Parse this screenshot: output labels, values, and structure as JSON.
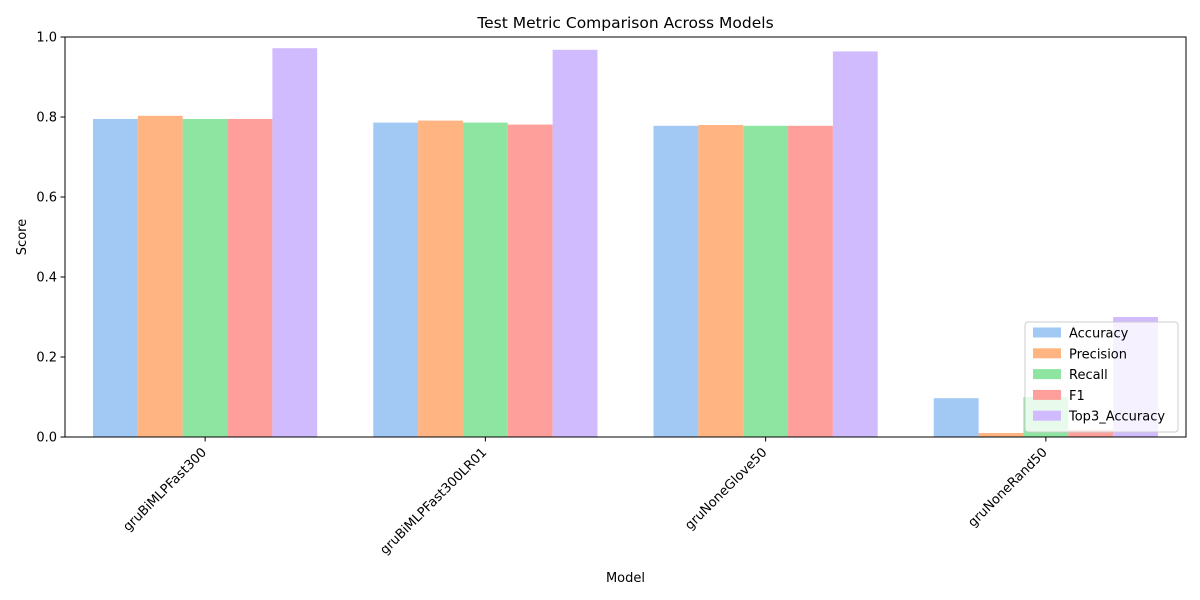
{
  "chart_data": {
    "type": "bar",
    "title": "Test Metric Comparison Across Models",
    "xlabel": "Model",
    "ylabel": "Score",
    "ylim": [
      0,
      1.0
    ],
    "yticks": [
      "0.0",
      "0.2",
      "0.4",
      "0.6",
      "0.8",
      "1.0"
    ],
    "categories": [
      "gruBiMLPFast300",
      "gruBiMLPFast300LR01",
      "gruNoneGlove50",
      "gruNoneRand50"
    ],
    "series": [
      {
        "name": "Accuracy",
        "color": "#a1c9f4",
        "values": [
          0.795,
          0.786,
          0.778,
          0.097
        ]
      },
      {
        "name": "Precision",
        "color": "#ffb482",
        "values": [
          0.803,
          0.791,
          0.78,
          0.01
        ]
      },
      {
        "name": "Recall",
        "color": "#8de5a1",
        "values": [
          0.795,
          0.786,
          0.778,
          0.1
        ]
      },
      {
        "name": "F1",
        "color": "#ff9f9b",
        "values": [
          0.795,
          0.781,
          0.778,
          0.018
        ]
      },
      {
        "name": "Top3_Accuracy",
        "color": "#d0bbff",
        "values": [
          0.972,
          0.968,
          0.964,
          0.3
        ]
      }
    ],
    "legend_position": "lower-right",
    "grid": false
  }
}
